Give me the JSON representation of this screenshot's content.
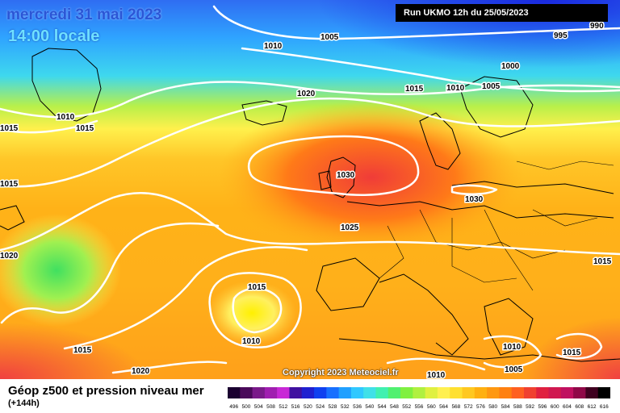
{
  "header": {
    "date": "mercredi 31 mai 2023",
    "time": "14:00 locale",
    "run": "Run UKMO 12h du 25/05/2023"
  },
  "footer": {
    "copyright": "Copyright 2023 Meteociel.fr",
    "legend_title": "Géop z500 et pression niveau mer",
    "legend_subtitle": "(+144h)"
  },
  "isobar_labels": [
    "990",
    "995",
    "1005",
    "1010",
    "1000",
    "1010",
    "1005",
    "1015",
    "1020",
    "1010",
    "1015",
    "1015",
    "1015",
    "1020",
    "1030",
    "1030",
    "1025",
    "1015",
    "1015",
    "1010",
    "1015",
    "1020",
    "1010",
    "1010",
    "1005",
    "1015"
  ],
  "color_scale": {
    "values": [
      "496",
      "500",
      "504",
      "508",
      "512",
      "516",
      "520",
      "524",
      "528",
      "532",
      "536",
      "540",
      "544",
      "548",
      "552",
      "556",
      "560",
      "564",
      "568",
      "572",
      "576",
      "580",
      "584",
      "588",
      "592",
      "596",
      "600",
      "604",
      "608",
      "612",
      "616"
    ],
    "colors": [
      "#1a0030",
      "#4a0a5a",
      "#7a1a8a",
      "#a01eb0",
      "#c828d6",
      "#4010a0",
      "#2020d0",
      "#1040f0",
      "#1870ff",
      "#20a0ff",
      "#30c8ff",
      "#40e0e8",
      "#40f0b0",
      "#50f070",
      "#80f040",
      "#b0f040",
      "#e0f040",
      "#fff050",
      "#ffe030",
      "#ffc820",
      "#ffb010",
      "#ff9810",
      "#ff8010",
      "#ff6020",
      "#f04030",
      "#e02040",
      "#d01850",
      "#c01060",
      "#900848",
      "#400020",
      "#000000"
    ]
  }
}
